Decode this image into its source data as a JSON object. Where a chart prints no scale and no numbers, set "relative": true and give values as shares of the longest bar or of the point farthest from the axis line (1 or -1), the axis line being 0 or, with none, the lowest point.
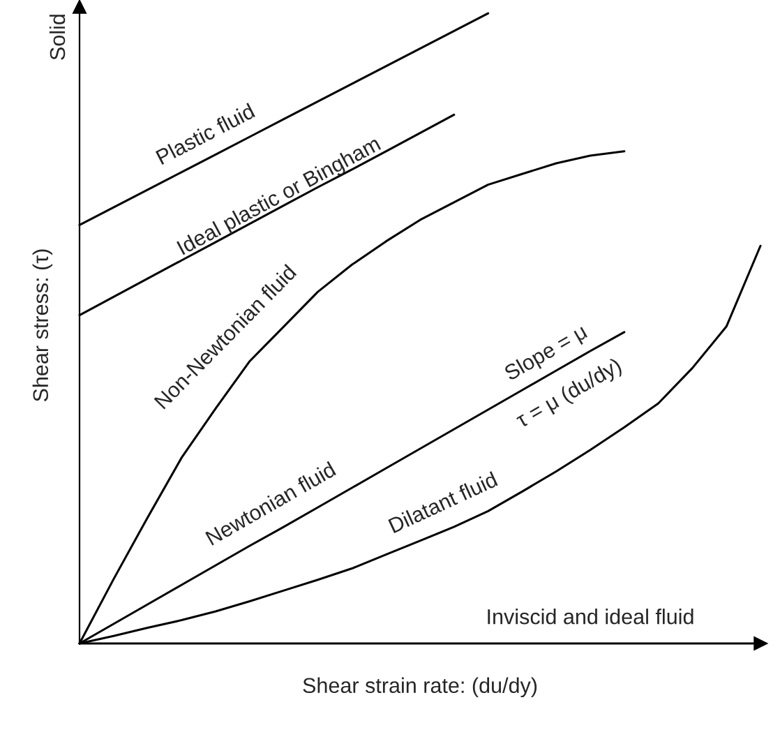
{
  "chart_data": {
    "type": "line",
    "relative": true,
    "xlabel": "Shear strain rate: (du/dy)",
    "ylabel": "Shear stress: (τ)",
    "marker": "none",
    "line_style": "solid",
    "categories": [
      null,
      null,
      null,
      null,
      null,
      null,
      null,
      null,
      null,
      null,
      null,
      null,
      null,
      null,
      null,
      null,
      null,
      null,
      null,
      null,
      null
    ],
    "series": [
      {
        "name": "Plastic fluid",
        "color": "#000000",
        "values": [
          0.664,
          0.692,
          0.72,
          0.748,
          0.776,
          0.804,
          0.832,
          0.86,
          0.888,
          0.916,
          0.944,
          0.972,
          1.0,
          null,
          null,
          null,
          null,
          null,
          null,
          null,
          null
        ]
      },
      {
        "name": "Ideal plastic or Bingham",
        "color": "#000000",
        "values": [
          0.521,
          0.55,
          0.579,
          0.608,
          0.637,
          0.666,
          0.695,
          0.724,
          0.752,
          0.781,
          0.81,
          0.839,
          null,
          null,
          null,
          null,
          null,
          null,
          null,
          null,
          null
        ]
      },
      {
        "name": "Non-Newtonian fluid",
        "color": "#000000",
        "values": [
          0,
          0.102,
          0.2,
          0.295,
          0.373,
          0.448,
          0.503,
          0.558,
          0.601,
          0.638,
          0.672,
          0.7,
          0.728,
          0.745,
          0.762,
          0.774,
          0.781,
          null,
          null,
          null,
          null
        ]
      },
      {
        "name": "Newtonian fluid",
        "color": "#000000",
        "values": [
          0,
          0.031,
          0.062,
          0.093,
          0.124,
          0.155,
          0.185,
          0.216,
          0.247,
          0.278,
          0.309,
          0.34,
          0.371,
          0.402,
          0.433,
          0.464,
          0.494,
          null,
          null,
          null,
          null
        ]
      },
      {
        "name": "Dilatant fluid",
        "color": "#000000",
        "values": [
          0,
          0.012,
          0.025,
          0.037,
          0.051,
          0.067,
          0.084,
          0.101,
          0.119,
          0.141,
          0.163,
          0.185,
          0.21,
          0.241,
          0.273,
          0.307,
          0.343,
          0.381,
          0.437,
          0.503,
          0.631
        ]
      },
      {
        "name": "Inviscid and ideal fluid",
        "color": "#000000",
        "values": [
          0,
          0,
          0,
          0,
          0,
          0,
          0,
          0,
          0,
          0,
          0,
          0,
          0,
          0,
          0,
          0,
          0,
          0,
          0,
          0,
          0
        ]
      }
    ],
    "annotations": [
      "Solid",
      "Slope = μ",
      "τ = μ (du/dy)"
    ]
  }
}
